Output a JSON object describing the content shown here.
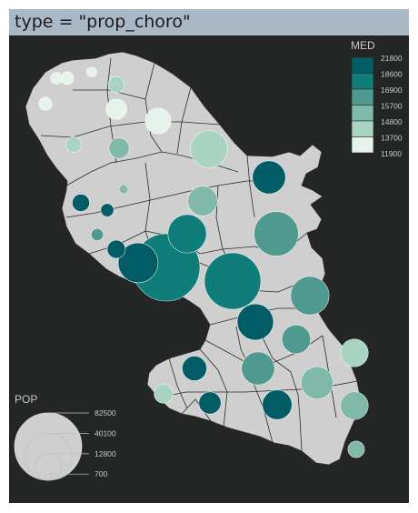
{
  "title": "type = \"prop_choro\"",
  "colors": {
    "panel_bg": "#242626",
    "land": "#cfcfcf",
    "border": "#1c1c1c",
    "text": "#c8c8c8"
  },
  "legend_choro": {
    "title": "MED",
    "placement": "top-right",
    "breaks": [
      "21800",
      "18600",
      "16900",
      "15700",
      "14800",
      "13700",
      "11900"
    ],
    "colors": [
      "#015c65",
      "#0f7d79",
      "#50998e",
      "#80b9a9",
      "#a9d4c1",
      "#e6f3ea"
    ]
  },
  "legend_prop": {
    "title": "POP",
    "placement": "bottom-left",
    "values": [
      82500,
      40100,
      12800,
      700
    ],
    "labels": [
      "82500",
      "40100",
      "12800",
      "700"
    ]
  },
  "symbols": [
    {
      "pop": 2500,
      "med": 12600
    },
    {
      "pop": 1800,
      "med": 13200
    },
    {
      "pop": 4800,
      "med": 14300
    },
    {
      "pop": 3000,
      "med": 12300
    },
    {
      "pop": 3200,
      "med": 12500
    },
    {
      "pop": 12100,
      "med": 12800
    },
    {
      "pop": 7800,
      "med": 12400
    },
    {
      "pop": 7600,
      "med": 15500
    },
    {
      "pop": 4300,
      "med": 14000
    },
    {
      "pop": 25000,
      "med": 14100
    },
    {
      "pop": 20000,
      "med": 19000
    },
    {
      "pop": 5500,
      "med": 21500
    },
    {
      "pop": 3100,
      "med": 20800
    },
    {
      "pop": 1500,
      "med": 15000
    },
    {
      "pop": 16000,
      "med": 15200
    },
    {
      "pop": 2700,
      "med": 15900
    },
    {
      "pop": 6000,
      "med": 21700
    },
    {
      "pop": 27000,
      "med": 18000
    },
    {
      "pop": 36000,
      "med": 16200
    },
    {
      "pop": 82500,
      "med": 18100
    },
    {
      "pop": 29000,
      "med": 21700
    },
    {
      "pop": 58000,
      "med": 18300
    },
    {
      "pop": 27000,
      "med": 16200
    },
    {
      "pop": 24000,
      "med": 20500
    },
    {
      "pop": 15000,
      "med": 16000
    },
    {
      "pop": 14000,
      "med": 14200
    },
    {
      "pop": 11000,
      "med": 20800
    },
    {
      "pop": 20000,
      "med": 16000
    },
    {
      "pop": 6500,
      "med": 13800
    },
    {
      "pop": 9000,
      "med": 20000
    },
    {
      "pop": 16000,
      "med": 19300
    },
    {
      "pop": 19000,
      "med": 15000
    },
    {
      "pop": 14000,
      "med": 15000
    },
    {
      "pop": 5000,
      "med": 15600
    }
  ]
}
